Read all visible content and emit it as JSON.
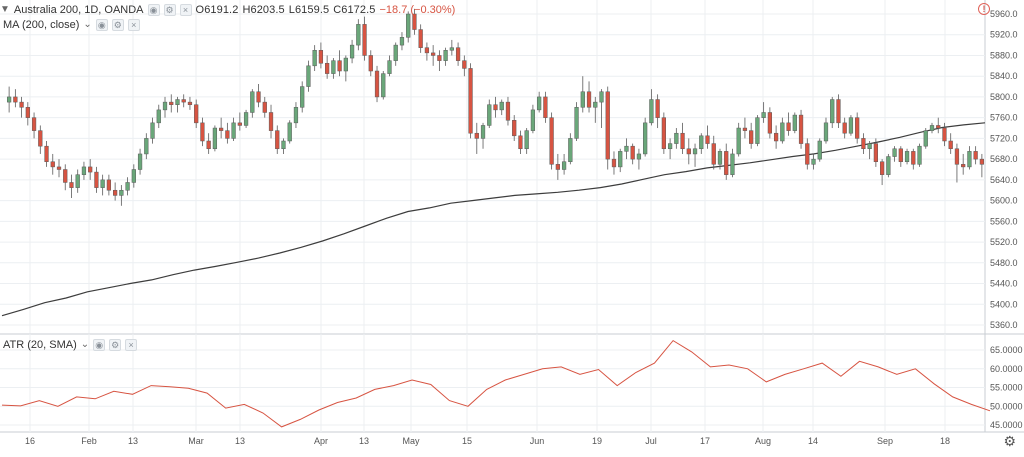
{
  "header": {
    "symbol": "Australia 200, 1D, OANDA",
    "o_label": "O",
    "o": "6191.2",
    "h_label": "H",
    "h": "6203.5",
    "l_label": "L",
    "l": "6159.5",
    "c_label": "C",
    "c": "6172.5",
    "change": "−18.7 (−0.30%)"
  },
  "ma_legend": "MA (200, close)",
  "atr_legend": "ATR (20, SMA)",
  "colors": {
    "up": "#6aa77a",
    "down": "#d75442",
    "ma": "#3d3d3d",
    "atr": "#d75442",
    "grid": "#eceff2",
    "axis_text": "#555555"
  },
  "icons": [
    "eye-icon",
    "gear-icon",
    "close-icon",
    "chevron-down-icon",
    "alert-icon"
  ],
  "chart_data": [
    {
      "type": "candlestick",
      "title": "Australia 200, 1D, OANDA",
      "ylim": [
        5340,
        5980
      ],
      "y_ticks": [
        "5960.0",
        "5920.0",
        "5880.0",
        "5840.0",
        "5800.0",
        "5760.0",
        "5720.0",
        "5680.0",
        "5640.0",
        "5600.0",
        "5560.0",
        "5520.0",
        "5480.0",
        "5440.0",
        "5400.0",
        "5360.0"
      ],
      "x_ticks": [
        "16",
        "Feb",
        "13",
        "Mar",
        "13",
        "Apr",
        "13",
        "May",
        "15",
        "Jun",
        "19",
        "Jul",
        "17",
        "Aug",
        "14",
        "Sep",
        "18"
      ],
      "candles_ohlc": [
        [
          5790,
          5820,
          5770,
          5800
        ],
        [
          5800,
          5815,
          5780,
          5790
        ],
        [
          5790,
          5800,
          5760,
          5780
        ],
        [
          5780,
          5790,
          5745,
          5760
        ],
        [
          5760,
          5770,
          5720,
          5735
        ],
        [
          5735,
          5745,
          5690,
          5705
        ],
        [
          5705,
          5715,
          5665,
          5675
        ],
        [
          5675,
          5690,
          5650,
          5665
        ],
        [
          5665,
          5680,
          5645,
          5660
        ],
        [
          5660,
          5670,
          5620,
          5635
        ],
        [
          5635,
          5650,
          5605,
          5625
        ],
        [
          5625,
          5660,
          5615,
          5650
        ],
        [
          5650,
          5675,
          5640,
          5665
        ],
        [
          5665,
          5680,
          5640,
          5655
        ],
        [
          5655,
          5665,
          5615,
          5625
        ],
        [
          5625,
          5650,
          5610,
          5640
        ],
        [
          5640,
          5650,
          5610,
          5620
        ],
        [
          5620,
          5635,
          5600,
          5610
        ],
        [
          5610,
          5630,
          5590,
          5620
        ],
        [
          5620,
          5645,
          5610,
          5635
        ],
        [
          5635,
          5670,
          5625,
          5660
        ],
        [
          5660,
          5700,
          5650,
          5690
        ],
        [
          5690,
          5730,
          5680,
          5720
        ],
        [
          5720,
          5760,
          5710,
          5750
        ],
        [
          5750,
          5785,
          5740,
          5775
        ],
        [
          5775,
          5800,
          5760,
          5790
        ],
        [
          5790,
          5805,
          5770,
          5785
        ],
        [
          5785,
          5800,
          5770,
          5795
        ],
        [
          5795,
          5805,
          5780,
          5790
        ],
        [
          5790,
          5800,
          5775,
          5785
        ],
        [
          5785,
          5795,
          5740,
          5750
        ],
        [
          5750,
          5760,
          5705,
          5715
        ],
        [
          5715,
          5730,
          5690,
          5700
        ],
        [
          5700,
          5745,
          5695,
          5740
        ],
        [
          5740,
          5760,
          5720,
          5735
        ],
        [
          5735,
          5750,
          5710,
          5720
        ],
        [
          5720,
          5760,
          5715,
          5750
        ],
        [
          5750,
          5770,
          5735,
          5745
        ],
        [
          5745,
          5775,
          5740,
          5770
        ],
        [
          5770,
          5815,
          5760,
          5810
        ],
        [
          5810,
          5825,
          5780,
          5790
        ],
        [
          5790,
          5800,
          5760,
          5770
        ],
        [
          5770,
          5785,
          5720,
          5735
        ],
        [
          5735,
          5745,
          5690,
          5700
        ],
        [
          5700,
          5720,
          5690,
          5715
        ],
        [
          5715,
          5755,
          5710,
          5750
        ],
        [
          5750,
          5790,
          5740,
          5780
        ],
        [
          5780,
          5830,
          5770,
          5820
        ],
        [
          5820,
          5870,
          5810,
          5860
        ],
        [
          5860,
          5900,
          5850,
          5890
        ],
        [
          5890,
          5905,
          5855,
          5865
        ],
        [
          5865,
          5880,
          5835,
          5845
        ],
        [
          5845,
          5875,
          5835,
          5870
        ],
        [
          5870,
          5890,
          5840,
          5850
        ],
        [
          5850,
          5880,
          5830,
          5875
        ],
        [
          5875,
          5910,
          5865,
          5900
        ],
        [
          5900,
          5950,
          5890,
          5940
        ],
        [
          5940,
          5955,
          5870,
          5880
        ],
        [
          5880,
          5890,
          5840,
          5850
        ],
        [
          5850,
          5860,
          5790,
          5800
        ],
        [
          5800,
          5850,
          5795,
          5845
        ],
        [
          5845,
          5880,
          5840,
          5870
        ],
        [
          5870,
          5905,
          5860,
          5900
        ],
        [
          5900,
          5925,
          5890,
          5915
        ],
        [
          5915,
          5965,
          5905,
          5960
        ],
        [
          5960,
          5970,
          5920,
          5930
        ],
        [
          5930,
          5940,
          5885,
          5895
        ],
        [
          5895,
          5905,
          5870,
          5885
        ],
        [
          5885,
          5900,
          5860,
          5880
        ],
        [
          5880,
          5890,
          5850,
          5870
        ],
        [
          5870,
          5895,
          5860,
          5890
        ],
        [
          5890,
          5910,
          5880,
          5895
        ],
        [
          5895,
          5905,
          5860,
          5870
        ],
        [
          5870,
          5880,
          5840,
          5855
        ],
        [
          5855,
          5865,
          5720,
          5730
        ],
        [
          5730,
          5750,
          5690,
          5720
        ],
        [
          5720,
          5750,
          5700,
          5745
        ],
        [
          5745,
          5795,
          5740,
          5785
        ],
        [
          5785,
          5800,
          5760,
          5775
        ],
        [
          5775,
          5795,
          5765,
          5790
        ],
        [
          5790,
          5800,
          5745,
          5755
        ],
        [
          5755,
          5765,
          5715,
          5725
        ],
        [
          5725,
          5735,
          5690,
          5700
        ],
        [
          5700,
          5740,
          5690,
          5735
        ],
        [
          5735,
          5785,
          5730,
          5775
        ],
        [
          5775,
          5810,
          5770,
          5800
        ],
        [
          5800,
          5810,
          5750,
          5760
        ],
        [
          5760,
          5770,
          5660,
          5670
        ],
        [
          5670,
          5690,
          5640,
          5660
        ],
        [
          5660,
          5690,
          5650,
          5675
        ],
        [
          5675,
          5730,
          5670,
          5720
        ],
        [
          5720,
          5790,
          5715,
          5780
        ],
        [
          5780,
          5840,
          5770,
          5810
        ],
        [
          5810,
          5830,
          5770,
          5780
        ],
        [
          5780,
          5800,
          5750,
          5790
        ],
        [
          5790,
          5815,
          5740,
          5810
        ],
        [
          5810,
          5820,
          5660,
          5680
        ],
        [
          5680,
          5695,
          5650,
          5665
        ],
        [
          5665,
          5700,
          5655,
          5695
        ],
        [
          5695,
          5720,
          5680,
          5705
        ],
        [
          5705,
          5710,
          5670,
          5680
        ],
        [
          5680,
          5700,
          5660,
          5690
        ],
        [
          5690,
          5760,
          5685,
          5750
        ],
        [
          5750,
          5815,
          5745,
          5795
        ],
        [
          5795,
          5805,
          5740,
          5760
        ],
        [
          5760,
          5770,
          5690,
          5700
        ],
        [
          5700,
          5720,
          5680,
          5710
        ],
        [
          5710,
          5740,
          5700,
          5730
        ],
        [
          5730,
          5750,
          5690,
          5700
        ],
        [
          5700,
          5720,
          5670,
          5690
        ],
        [
          5690,
          5710,
          5665,
          5700
        ],
        [
          5700,
          5730,
          5690,
          5725
        ],
        [
          5725,
          5745,
          5700,
          5710
        ],
        [
          5710,
          5725,
          5660,
          5670
        ],
        [
          5670,
          5700,
          5660,
          5695
        ],
        [
          5695,
          5710,
          5640,
          5650
        ],
        [
          5650,
          5700,
          5645,
          5690
        ],
        [
          5690,
          5750,
          5685,
          5740
        ],
        [
          5740,
          5760,
          5720,
          5735
        ],
        [
          5735,
          5750,
          5700,
          5710
        ],
        [
          5710,
          5765,
          5705,
          5760
        ],
        [
          5760,
          5790,
          5750,
          5770
        ],
        [
          5770,
          5780,
          5720,
          5730
        ],
        [
          5730,
          5745,
          5700,
          5715
        ],
        [
          5715,
          5760,
          5710,
          5750
        ],
        [
          5750,
          5770,
          5725,
          5735
        ],
        [
          5735,
          5770,
          5730,
          5765
        ],
        [
          5765,
          5775,
          5700,
          5710
        ],
        [
          5710,
          5720,
          5660,
          5670
        ],
        [
          5670,
          5690,
          5660,
          5680
        ],
        [
          5680,
          5720,
          5675,
          5715
        ],
        [
          5715,
          5760,
          5710,
          5750
        ],
        [
          5750,
          5800,
          5740,
          5795
        ],
        [
          5795,
          5805,
          5740,
          5750
        ],
        [
          5750,
          5760,
          5720,
          5730
        ],
        [
          5730,
          5765,
          5725,
          5760
        ],
        [
          5760,
          5770,
          5710,
          5720
        ],
        [
          5720,
          5730,
          5690,
          5700
        ],
        [
          5700,
          5715,
          5680,
          5710
        ],
        [
          5710,
          5720,
          5665,
          5675
        ],
        [
          5675,
          5680,
          5630,
          5650
        ],
        [
          5650,
          5690,
          5645,
          5685
        ],
        [
          5685,
          5705,
          5675,
          5700
        ],
        [
          5700,
          5705,
          5665,
          5675
        ],
        [
          5675,
          5700,
          5670,
          5695
        ],
        [
          5695,
          5700,
          5660,
          5670
        ],
        [
          5670,
          5710,
          5665,
          5705
        ],
        [
          5705,
          5740,
          5700,
          5735
        ],
        [
          5735,
          5750,
          5730,
          5745
        ],
        [
          5745,
          5760,
          5730,
          5740
        ],
        [
          5740,
          5750,
          5705,
          5715
        ],
        [
          5715,
          5730,
          5690,
          5700
        ],
        [
          5700,
          5710,
          5635,
          5670
        ],
        [
          5670,
          5690,
          5650,
          5665
        ],
        [
          5665,
          5705,
          5660,
          5695
        ],
        [
          5695,
          5705,
          5670,
          5680
        ],
        [
          5680,
          5690,
          5645,
          5670
        ]
      ],
      "ma200": [
        5378,
        5390,
        5403,
        5412,
        5424,
        5432,
        5440,
        5447,
        5457,
        5466,
        5473,
        5481,
        5489,
        5499,
        5510,
        5522,
        5536,
        5551,
        5566,
        5579,
        5586,
        5595,
        5600,
        5605,
        5610,
        5613,
        5616,
        5620,
        5625,
        5632,
        5641,
        5650,
        5656,
        5663,
        5668,
        5673,
        5679,
        5685,
        5690,
        5697,
        5705,
        5713,
        5722,
        5732,
        5741,
        5746,
        5750
      ]
    },
    {
      "type": "line",
      "title": "ATR (20, SMA)",
      "series": [
        {
          "name": "ATR (20, SMA)",
          "values": [
            50.3,
            50.1,
            51.5,
            50.0,
            52.5,
            52.0,
            54.0,
            53.2,
            55.5,
            55.2,
            54.8,
            53.5,
            49.5,
            50.5,
            48.2,
            44.5,
            46.5,
            49.0,
            51.0,
            52.2,
            54.5,
            55.5,
            57.0,
            55.8,
            51.5,
            50.0,
            54.5,
            57.0,
            58.5,
            60.0,
            60.5,
            58.5,
            59.8,
            55.5,
            59.0,
            61.5,
            67.5,
            64.5,
            60.5,
            61.0,
            60.0,
            56.5,
            58.5,
            60.0,
            61.5,
            58.0,
            62.0,
            60.5,
            58.5,
            60.0,
            56.0,
            52.5,
            50.5,
            48.8
          ]
        }
      ],
      "ylim": [
        44,
        69
      ],
      "y_ticks": [
        "65.0000",
        "60.0000",
        "55.0000",
        "50.0000",
        "45.0000"
      ]
    }
  ]
}
